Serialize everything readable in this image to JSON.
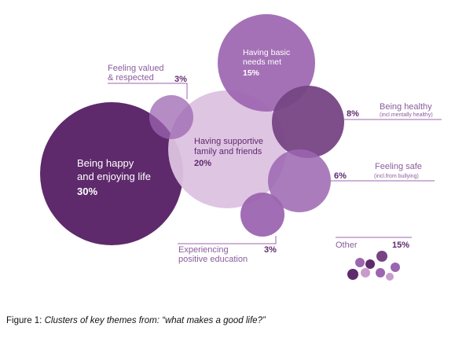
{
  "chart_data": {
    "type": "bubble",
    "title": "",
    "series": [
      {
        "id": "happy",
        "lines": [
          "Being happy",
          "and enjoying life"
        ],
        "value": "30%",
        "pct": 30
      },
      {
        "id": "family",
        "lines": [
          "Having supportive",
          "family and friends"
        ],
        "value": "20%",
        "pct": 20
      },
      {
        "id": "needs",
        "lines": [
          "Having basic",
          "needs met"
        ],
        "value": "15%",
        "pct": 15
      },
      {
        "id": "healthy",
        "lines": [
          "Being healthy"
        ],
        "sub": "(incl.mentally healthy)",
        "value": "8%",
        "pct": 8
      },
      {
        "id": "safe",
        "lines": [
          "Feeling safe"
        ],
        "sub": "(incl.from bullying)",
        "value": "6%",
        "pct": 6
      },
      {
        "id": "valued",
        "lines": [
          "Feeling valued",
          "& respected"
        ],
        "value": "3%",
        "pct": 3
      },
      {
        "id": "education",
        "lines": [
          "Experiencing",
          "positive education"
        ],
        "value": "3%",
        "pct": 3
      },
      {
        "id": "other",
        "lines": [
          "Other"
        ],
        "value": "15%",
        "pct": 15
      }
    ]
  },
  "colors": {
    "dark": "#5e2a6c",
    "medium_dark": "#764484",
    "medium": "#9c65b0",
    "light": "#c79ccc",
    "pale": "#dcc2e0",
    "label_text": "#8a5c9c",
    "pct_text": "#5e2a6c",
    "leader_line": "#9c65b0"
  },
  "caption": {
    "prefix": "Figure 1: ",
    "text": "Clusters of key themes from: “what makes a good life?”"
  }
}
